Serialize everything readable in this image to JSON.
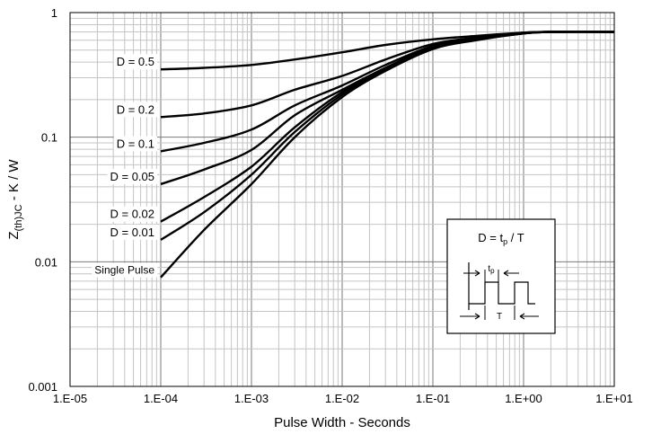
{
  "chart_data": {
    "type": "line",
    "title": "",
    "xlabel": "Pulse Width - Seconds",
    "ylabel_main": "Z",
    "ylabel_sub": "(th)JC",
    "ylabel_rest": " - K / W",
    "x_scale": "log",
    "y_scale": "log",
    "xlim": [
      1e-05,
      10
    ],
    "ylim": [
      0.001,
      1
    ],
    "x_ticks": [
      "1.E-05",
      "1.E-04",
      "1.E-03",
      "1.E-02",
      "1.E-01",
      "1.E+00",
      "1.E+01"
    ],
    "y_ticks": [
      "0.001",
      "0.01",
      "0.1",
      "1"
    ],
    "grid": true,
    "x": [
      0.0001,
      0.0003,
      0.001,
      0.003,
      0.01,
      0.03,
      0.1,
      0.3,
      1,
      2,
      10
    ],
    "series": [
      {
        "name": "D = 0.5",
        "values": [
          0.35,
          0.36,
          0.38,
          0.42,
          0.48,
          0.55,
          0.61,
          0.65,
          0.69,
          0.7,
          0.7
        ]
      },
      {
        "name": "D = 0.2",
        "values": [
          0.145,
          0.155,
          0.18,
          0.24,
          0.31,
          0.42,
          0.56,
          0.63,
          0.69,
          0.7,
          0.7
        ]
      },
      {
        "name": "D = 0.1",
        "values": [
          0.077,
          0.09,
          0.115,
          0.18,
          0.26,
          0.38,
          0.54,
          0.62,
          0.68,
          0.7,
          0.7
        ]
      },
      {
        "name": "D = 0.05",
        "values": [
          0.042,
          0.055,
          0.079,
          0.15,
          0.24,
          0.36,
          0.53,
          0.61,
          0.68,
          0.7,
          0.7
        ]
      },
      {
        "name": "D = 0.02",
        "values": [
          0.021,
          0.033,
          0.058,
          0.12,
          0.23,
          0.35,
          0.52,
          0.61,
          0.68,
          0.7,
          0.7
        ]
      },
      {
        "name": "D = 0.01",
        "values": [
          0.015,
          0.025,
          0.05,
          0.11,
          0.22,
          0.35,
          0.52,
          0.61,
          0.68,
          0.7,
          0.7
        ]
      },
      {
        "name": "Single Pulse",
        "values": [
          0.0075,
          0.018,
          0.042,
          0.1,
          0.21,
          0.34,
          0.51,
          0.6,
          0.68,
          0.7,
          0.7
        ]
      }
    ],
    "inset": {
      "formula_main": "D = t",
      "formula_sub": "p",
      "formula_rest": " / T",
      "tp_label": "t",
      "tp_sub": "p",
      "T_label": "T"
    }
  }
}
